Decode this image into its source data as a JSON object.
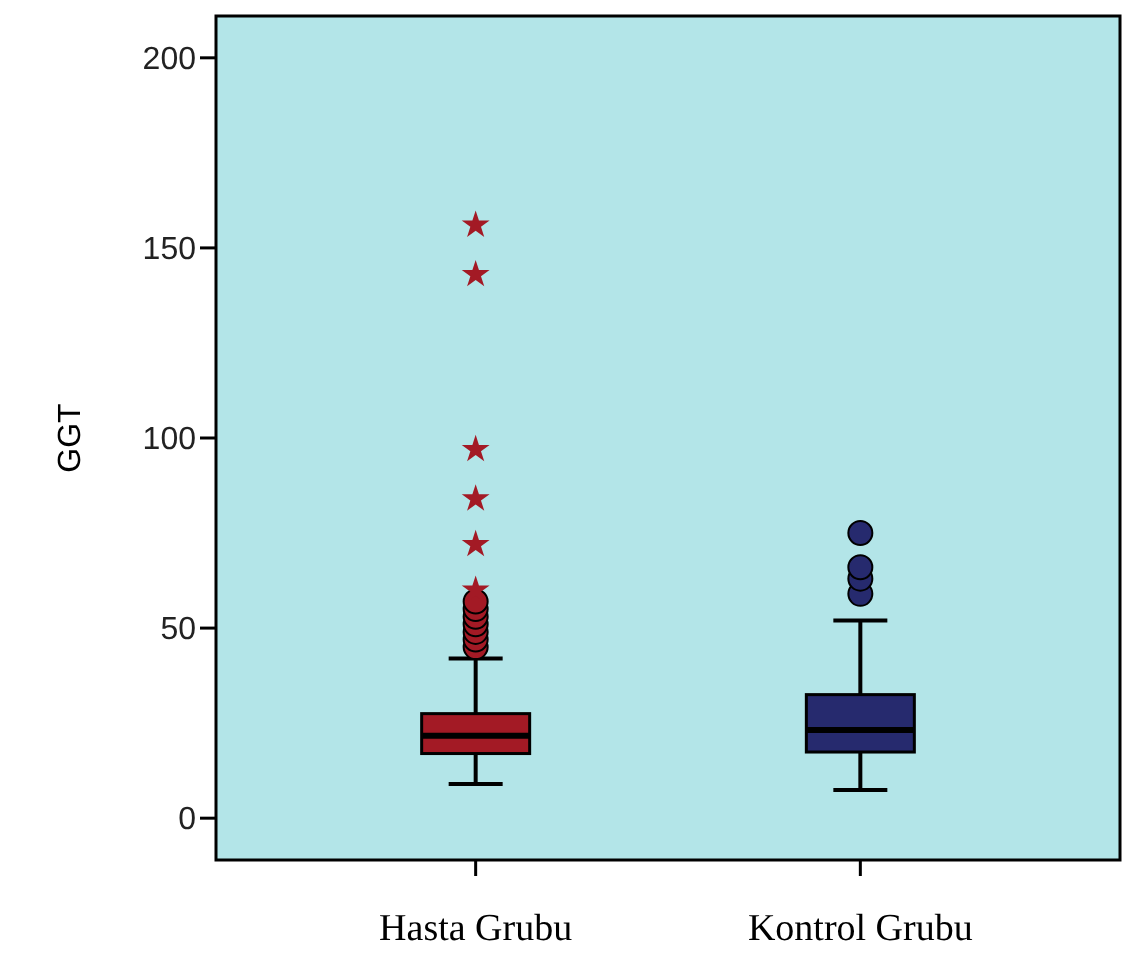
{
  "chart_data": {
    "type": "box",
    "ylabel": "GGT",
    "categories": [
      "Hasta Grubu",
      "Kontrol Grubu"
    ],
    "ylim": [
      -11,
      211
    ],
    "yticks": [
      0,
      50,
      100,
      150,
      200
    ],
    "grid": false,
    "series": [
      {
        "color": "#a31a25",
        "boxes": [
          {
            "low": 9,
            "q1": 17,
            "median": 21.7,
            "q3": 27.5,
            "high": 42,
            "outliers": [
              45,
              47,
              49,
              51,
              53,
              55,
              57,
              60,
              72,
              84,
              97,
              143,
              156
            ]
          },
          null
        ]
      },
      {
        "color": "#262a6e",
        "boxes": [
          null,
          {
            "low": 7.4,
            "q1": 17.4,
            "median": 23.2,
            "q3": 32.5,
            "high": 52,
            "outliers": [
              59,
              63,
              66,
              75
            ]
          }
        ]
      }
    ]
  }
}
